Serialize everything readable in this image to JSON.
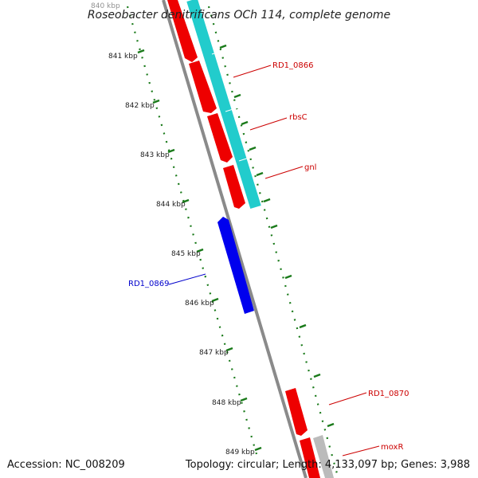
{
  "map": {
    "title": "Roseobacter denitrificans OCh 114, complete genome",
    "accession": "Accession: NC_008209",
    "summary": "Topology: circular; Length: 4,133,097 bp; Genes: 3,988"
  },
  "colors": {
    "backbone": "#8a8a8a",
    "tick_green": "#1a7a1a",
    "forward_gene": "#ee0000",
    "reverse_gene": "#0000ee",
    "feature_cyan": "#22cccc",
    "feature_gray": "#bbbbbb",
    "label_red": "#cc0000",
    "label_blue": "#0000cc"
  },
  "ruler": {
    "unit": "kbp",
    "labels": [
      "840 kbp",
      "841 kbp",
      "842 kbp",
      "843 kbp",
      "844 kbp",
      "845 kbp",
      "846 kbp",
      "847 kbp",
      "848 kbp",
      "849 kbp"
    ]
  },
  "genes": [
    {
      "name": "RD1_0866",
      "strand": "forward",
      "label_color": "#cc0000"
    },
    {
      "name": "rbsC",
      "strand": "forward",
      "label_color": "#cc0000"
    },
    {
      "name": "gnl",
      "strand": "forward",
      "label_color": "#cc0000"
    },
    {
      "name": "RD1_0869",
      "strand": "reverse",
      "label_color": "#0000cc"
    },
    {
      "name": "RD1_0870",
      "strand": "forward",
      "label_color": "#cc0000"
    },
    {
      "name": "moxR",
      "strand": "forward",
      "label_color": "#cc0000"
    }
  ]
}
